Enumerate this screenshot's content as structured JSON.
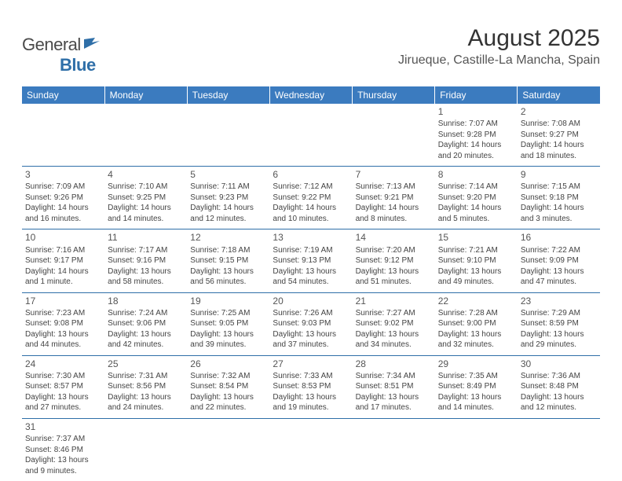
{
  "logo": {
    "brand1": "General",
    "brand2": "Blue"
  },
  "title": "August 2025",
  "location": "Jirueque, Castille-La Mancha, Spain",
  "dow": [
    "Sunday",
    "Monday",
    "Tuesday",
    "Wednesday",
    "Thursday",
    "Friday",
    "Saturday"
  ],
  "colors": {
    "header_bg": "#3b7bbf",
    "rule": "#2f6fa8"
  },
  "weeks": [
    [
      null,
      null,
      null,
      null,
      null,
      {
        "n": "1",
        "sr": "Sunrise: 7:07 AM",
        "ss": "Sunset: 9:28 PM",
        "d1": "Daylight: 14 hours",
        "d2": "and 20 minutes."
      },
      {
        "n": "2",
        "sr": "Sunrise: 7:08 AM",
        "ss": "Sunset: 9:27 PM",
        "d1": "Daylight: 14 hours",
        "d2": "and 18 minutes."
      }
    ],
    [
      {
        "n": "3",
        "sr": "Sunrise: 7:09 AM",
        "ss": "Sunset: 9:26 PM",
        "d1": "Daylight: 14 hours",
        "d2": "and 16 minutes."
      },
      {
        "n": "4",
        "sr": "Sunrise: 7:10 AM",
        "ss": "Sunset: 9:25 PM",
        "d1": "Daylight: 14 hours",
        "d2": "and 14 minutes."
      },
      {
        "n": "5",
        "sr": "Sunrise: 7:11 AM",
        "ss": "Sunset: 9:23 PM",
        "d1": "Daylight: 14 hours",
        "d2": "and 12 minutes."
      },
      {
        "n": "6",
        "sr": "Sunrise: 7:12 AM",
        "ss": "Sunset: 9:22 PM",
        "d1": "Daylight: 14 hours",
        "d2": "and 10 minutes."
      },
      {
        "n": "7",
        "sr": "Sunrise: 7:13 AM",
        "ss": "Sunset: 9:21 PM",
        "d1": "Daylight: 14 hours",
        "d2": "and 8 minutes."
      },
      {
        "n": "8",
        "sr": "Sunrise: 7:14 AM",
        "ss": "Sunset: 9:20 PM",
        "d1": "Daylight: 14 hours",
        "d2": "and 5 minutes."
      },
      {
        "n": "9",
        "sr": "Sunrise: 7:15 AM",
        "ss": "Sunset: 9:18 PM",
        "d1": "Daylight: 14 hours",
        "d2": "and 3 minutes."
      }
    ],
    [
      {
        "n": "10",
        "sr": "Sunrise: 7:16 AM",
        "ss": "Sunset: 9:17 PM",
        "d1": "Daylight: 14 hours",
        "d2": "and 1 minute."
      },
      {
        "n": "11",
        "sr": "Sunrise: 7:17 AM",
        "ss": "Sunset: 9:16 PM",
        "d1": "Daylight: 13 hours",
        "d2": "and 58 minutes."
      },
      {
        "n": "12",
        "sr": "Sunrise: 7:18 AM",
        "ss": "Sunset: 9:15 PM",
        "d1": "Daylight: 13 hours",
        "d2": "and 56 minutes."
      },
      {
        "n": "13",
        "sr": "Sunrise: 7:19 AM",
        "ss": "Sunset: 9:13 PM",
        "d1": "Daylight: 13 hours",
        "d2": "and 54 minutes."
      },
      {
        "n": "14",
        "sr": "Sunrise: 7:20 AM",
        "ss": "Sunset: 9:12 PM",
        "d1": "Daylight: 13 hours",
        "d2": "and 51 minutes."
      },
      {
        "n": "15",
        "sr": "Sunrise: 7:21 AM",
        "ss": "Sunset: 9:10 PM",
        "d1": "Daylight: 13 hours",
        "d2": "and 49 minutes."
      },
      {
        "n": "16",
        "sr": "Sunrise: 7:22 AM",
        "ss": "Sunset: 9:09 PM",
        "d1": "Daylight: 13 hours",
        "d2": "and 47 minutes."
      }
    ],
    [
      {
        "n": "17",
        "sr": "Sunrise: 7:23 AM",
        "ss": "Sunset: 9:08 PM",
        "d1": "Daylight: 13 hours",
        "d2": "and 44 minutes."
      },
      {
        "n": "18",
        "sr": "Sunrise: 7:24 AM",
        "ss": "Sunset: 9:06 PM",
        "d1": "Daylight: 13 hours",
        "d2": "and 42 minutes."
      },
      {
        "n": "19",
        "sr": "Sunrise: 7:25 AM",
        "ss": "Sunset: 9:05 PM",
        "d1": "Daylight: 13 hours",
        "d2": "and 39 minutes."
      },
      {
        "n": "20",
        "sr": "Sunrise: 7:26 AM",
        "ss": "Sunset: 9:03 PM",
        "d1": "Daylight: 13 hours",
        "d2": "and 37 minutes."
      },
      {
        "n": "21",
        "sr": "Sunrise: 7:27 AM",
        "ss": "Sunset: 9:02 PM",
        "d1": "Daylight: 13 hours",
        "d2": "and 34 minutes."
      },
      {
        "n": "22",
        "sr": "Sunrise: 7:28 AM",
        "ss": "Sunset: 9:00 PM",
        "d1": "Daylight: 13 hours",
        "d2": "and 32 minutes."
      },
      {
        "n": "23",
        "sr": "Sunrise: 7:29 AM",
        "ss": "Sunset: 8:59 PM",
        "d1": "Daylight: 13 hours",
        "d2": "and 29 minutes."
      }
    ],
    [
      {
        "n": "24",
        "sr": "Sunrise: 7:30 AM",
        "ss": "Sunset: 8:57 PM",
        "d1": "Daylight: 13 hours",
        "d2": "and 27 minutes."
      },
      {
        "n": "25",
        "sr": "Sunrise: 7:31 AM",
        "ss": "Sunset: 8:56 PM",
        "d1": "Daylight: 13 hours",
        "d2": "and 24 minutes."
      },
      {
        "n": "26",
        "sr": "Sunrise: 7:32 AM",
        "ss": "Sunset: 8:54 PM",
        "d1": "Daylight: 13 hours",
        "d2": "and 22 minutes."
      },
      {
        "n": "27",
        "sr": "Sunrise: 7:33 AM",
        "ss": "Sunset: 8:53 PM",
        "d1": "Daylight: 13 hours",
        "d2": "and 19 minutes."
      },
      {
        "n": "28",
        "sr": "Sunrise: 7:34 AM",
        "ss": "Sunset: 8:51 PM",
        "d1": "Daylight: 13 hours",
        "d2": "and 17 minutes."
      },
      {
        "n": "29",
        "sr": "Sunrise: 7:35 AM",
        "ss": "Sunset: 8:49 PM",
        "d1": "Daylight: 13 hours",
        "d2": "and 14 minutes."
      },
      {
        "n": "30",
        "sr": "Sunrise: 7:36 AM",
        "ss": "Sunset: 8:48 PM",
        "d1": "Daylight: 13 hours",
        "d2": "and 12 minutes."
      }
    ],
    [
      {
        "n": "31",
        "sr": "Sunrise: 7:37 AM",
        "ss": "Sunset: 8:46 PM",
        "d1": "Daylight: 13 hours",
        "d2": "and 9 minutes."
      },
      null,
      null,
      null,
      null,
      null,
      null
    ]
  ]
}
